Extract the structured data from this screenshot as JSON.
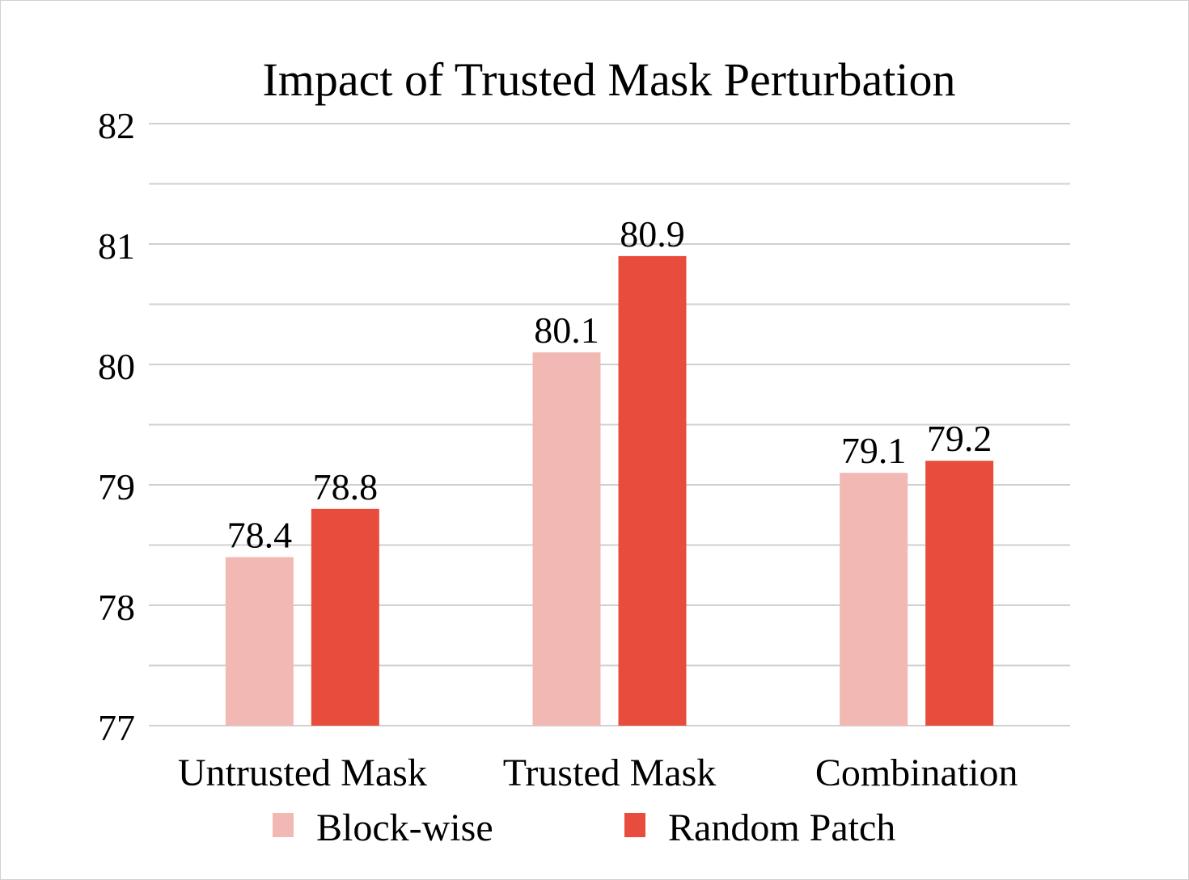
{
  "chart_data": {
    "type": "bar",
    "title": "Impact of Trusted Mask Perturbation",
    "categories": [
      "Untrusted Mask",
      "Trusted Mask",
      "Combination"
    ],
    "series": [
      {
        "name": "Block-wise",
        "values": [
          78.4,
          80.1,
          79.1
        ],
        "color": "#f2b8b4"
      },
      {
        "name": "Random Patch",
        "values": [
          78.8,
          80.9,
          79.2
        ],
        "color": "#e84c3d"
      }
    ],
    "data_labels": {
      "Block-wise": [
        "78.4",
        "80.1",
        "79.1"
      ],
      "Random Patch": [
        "78.8",
        "80.9",
        "79.2"
      ]
    },
    "ylim": [
      77,
      82
    ],
    "y_ticks": [
      "77",
      "78",
      "79",
      "80",
      "81",
      "82"
    ],
    "y_minor_step": 0.5,
    "grid": true,
    "gridline_color": "#d0d0d0",
    "legend_position": "bottom",
    "xlabel": "",
    "ylabel": ""
  }
}
